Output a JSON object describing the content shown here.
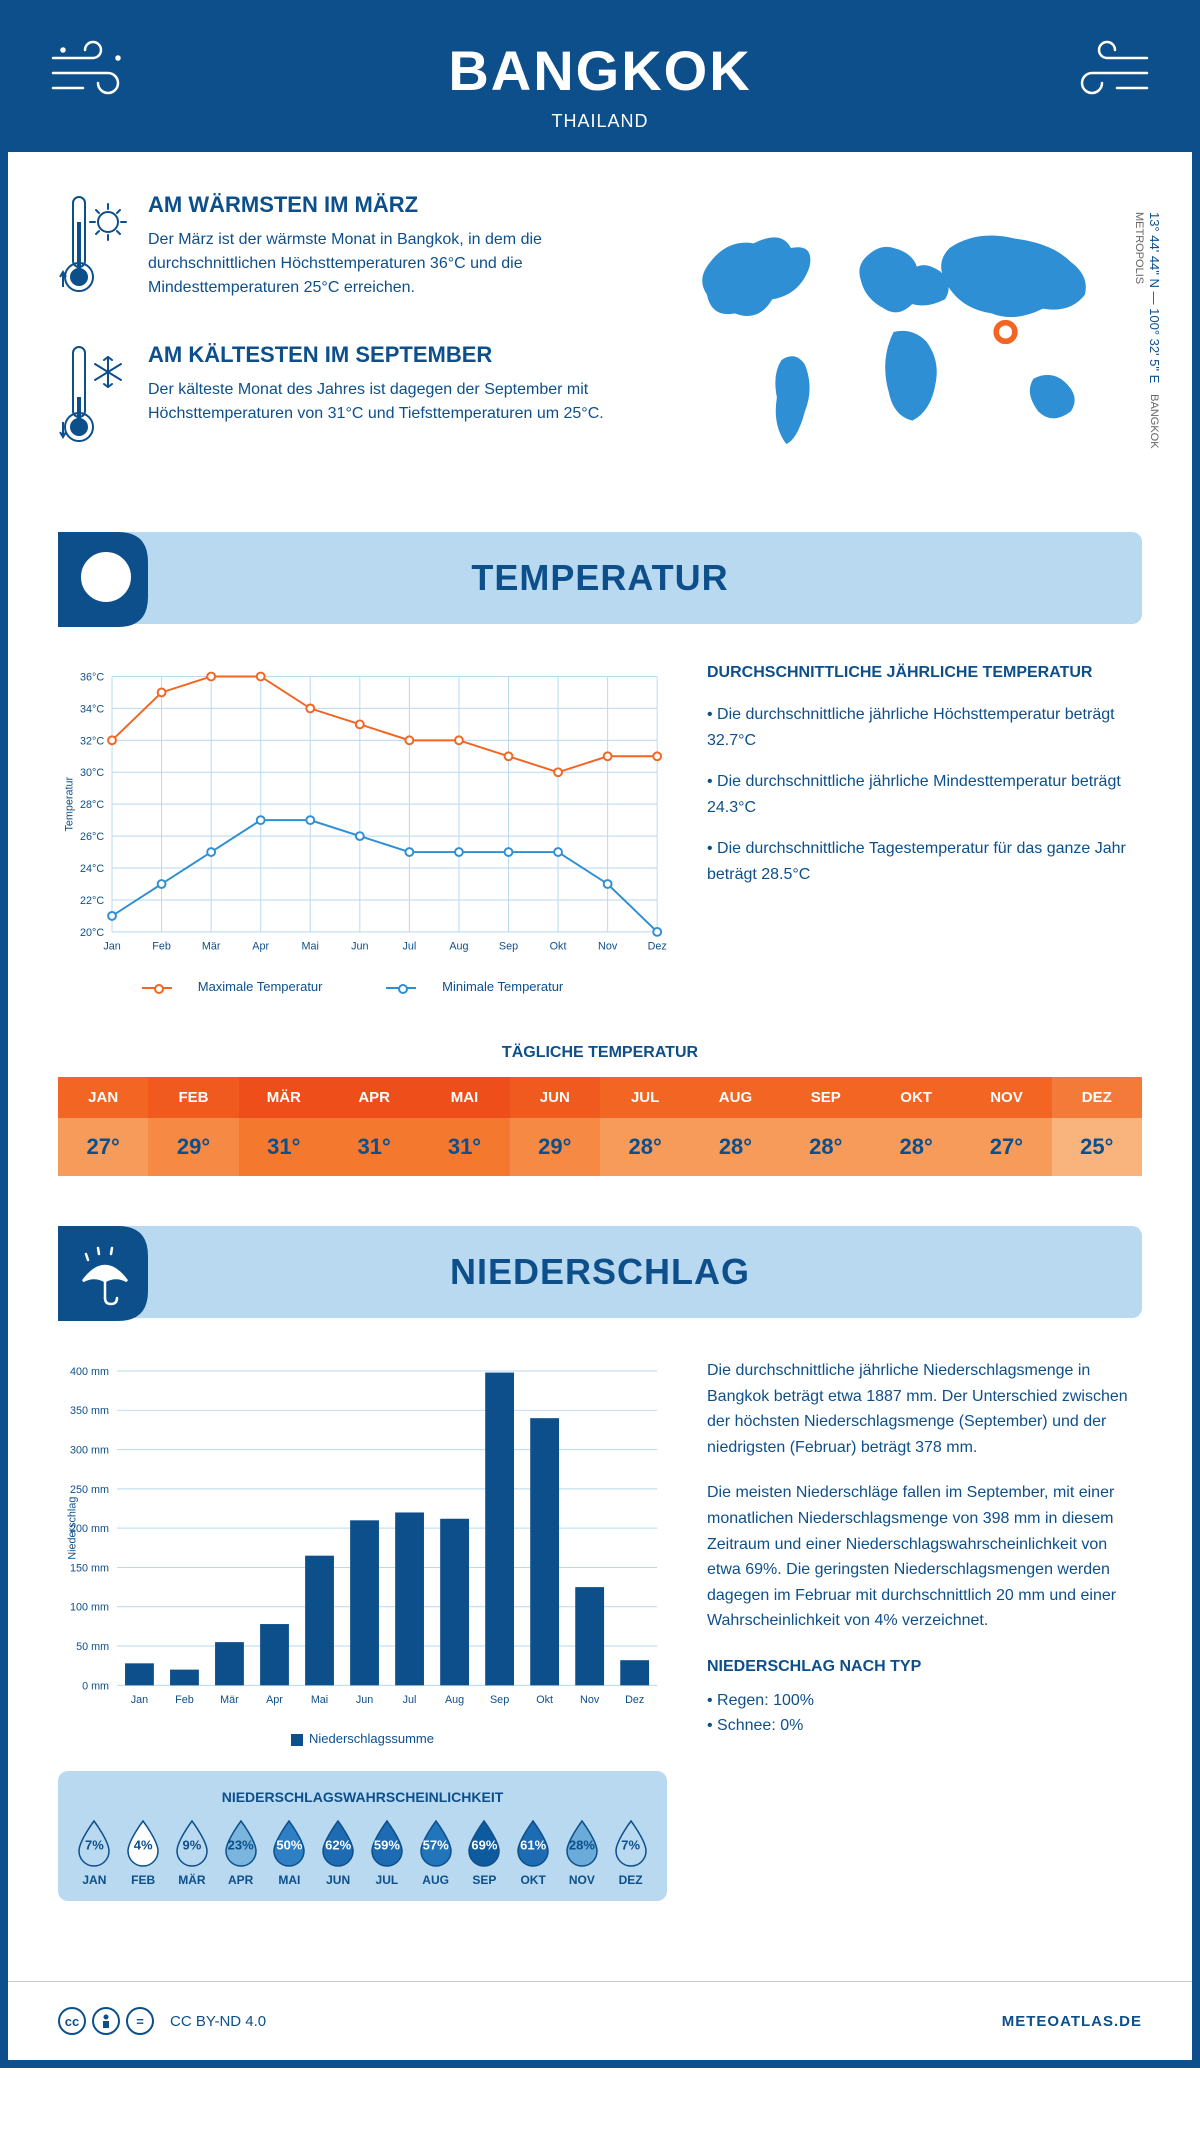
{
  "header": {
    "city": "BANGKOK",
    "country": "THAILAND"
  },
  "coords": {
    "text": "13° 44' 44\" N — 100° 32' 5\" E",
    "location": "BANGKOK METROPOLIS"
  },
  "intro": {
    "warmest": {
      "title": "AM WÄRMSTEN IM MÄRZ",
      "text": "Der März ist der wärmste Monat in Bangkok, in dem die durchschnittlichen Höchsttemperaturen 36°C und die Mindesttemperaturen 25°C erreichen."
    },
    "coldest": {
      "title": "AM KÄLTESTEN IM SEPTEMBER",
      "text": "Der kälteste Monat des Jahres ist dagegen der September mit Höchsttemperaturen von 31°C und Tiefsttemperaturen um 25°C."
    }
  },
  "temperature": {
    "section_title": "TEMPERATUR",
    "chart": {
      "type": "line",
      "months": [
        "Jan",
        "Feb",
        "Mär",
        "Apr",
        "Mai",
        "Jun",
        "Jul",
        "Aug",
        "Sep",
        "Okt",
        "Nov",
        "Dez"
      ],
      "max_values": [
        32,
        35,
        36,
        36,
        34,
        33,
        32,
        32,
        31,
        30,
        31,
        31
      ],
      "min_values": [
        21,
        23,
        25,
        27,
        27,
        26,
        25,
        25,
        25,
        25,
        23,
        20
      ],
      "ylim": [
        20,
        36
      ],
      "ytick_step": 2,
      "ylabel": "Temperatur",
      "max_color": "#f26522",
      "min_color": "#2e8fd4",
      "grid_color": "#b8d9ef",
      "background_color": "#ffffff",
      "legend_max": "Maximale Temperatur",
      "legend_min": "Minimale Temperatur"
    },
    "info": {
      "title": "DURCHSCHNITTLICHE JÄHRLICHE TEMPERATUR",
      "bullet1": "• Die durchschnittliche jährliche Höchsttemperatur beträgt 32.7°C",
      "bullet2": "• Die durchschnittliche jährliche Mindesttemperatur beträgt 24.3°C",
      "bullet3": "• Die durchschnittliche Tagestemperatur für das ganze Jahr beträgt 28.5°C"
    },
    "daily": {
      "title": "TÄGLICHE TEMPERATUR",
      "months": [
        "JAN",
        "FEB",
        "MÄR",
        "APR",
        "MAI",
        "JUN",
        "JUL",
        "AUG",
        "SEP",
        "OKT",
        "NOV",
        "DEZ"
      ],
      "values": [
        "27°",
        "29°",
        "31°",
        "31°",
        "31°",
        "29°",
        "28°",
        "28°",
        "28°",
        "28°",
        "27°",
        "25°"
      ],
      "month_colors": [
        "#f26522",
        "#f05a1e",
        "#ee4f1a",
        "#ee4f1a",
        "#ee4f1a",
        "#f05a1e",
        "#f26522",
        "#f26522",
        "#f26522",
        "#f26522",
        "#f26522",
        "#f47a3a"
      ],
      "val_colors": [
        "#f79b5a",
        "#f68944",
        "#f5782f",
        "#f5782f",
        "#f5782f",
        "#f68944",
        "#f79b5a",
        "#f79b5a",
        "#f79b5a",
        "#f79b5a",
        "#f79b5a",
        "#f9b47d"
      ]
    }
  },
  "precipitation": {
    "section_title": "NIEDERSCHLAG",
    "chart": {
      "type": "bar",
      "months": [
        "Jan",
        "Feb",
        "Mär",
        "Apr",
        "Mai",
        "Jun",
        "Jul",
        "Aug",
        "Sep",
        "Okt",
        "Nov",
        "Dez"
      ],
      "values": [
        28,
        20,
        55,
        78,
        165,
        210,
        220,
        212,
        398,
        340,
        125,
        32
      ],
      "ylim": [
        0,
        400
      ],
      "ytick_step": 50,
      "ylabel": "Niederschlag",
      "bar_color": "#0d4f8b",
      "grid_color": "#b8d9ef",
      "legend": "Niederschlagssumme"
    },
    "text": {
      "p1": "Die durchschnittliche jährliche Niederschlagsmenge in Bangkok beträgt etwa 1887 mm. Der Unterschied zwischen der höchsten Niederschlagsmenge (September) und der niedrigsten (Februar) beträgt 378 mm.",
      "p2": "Die meisten Niederschläge fallen im September, mit einer monatlichen Niederschlagsmenge von 398 mm in diesem Zeitraum und einer Niederschlagswahrscheinlichkeit von etwa 69%. Die geringsten Niederschlagsmengen werden dagegen im Februar mit durchschnittlich 20 mm und einer Wahrscheinlichkeit von 4% verzeichnet.",
      "type_title": "NIEDERSCHLAG NACH TYP",
      "type_rain": "• Regen: 100%",
      "type_snow": "• Schnee: 0%"
    },
    "probability": {
      "title": "NIEDERSCHLAGSWAHRSCHEINLICHKEIT",
      "months": [
        "JAN",
        "FEB",
        "MÄR",
        "APR",
        "MAI",
        "JUN",
        "JUL",
        "AUG",
        "SEP",
        "OKT",
        "NOV",
        "DEZ"
      ],
      "values": [
        "7%",
        "4%",
        "9%",
        "23%",
        "50%",
        "62%",
        "59%",
        "57%",
        "69%",
        "61%",
        "28%",
        "7%"
      ],
      "fill_colors": [
        "#b8d9ef",
        "#ffffff",
        "#b8d9ef",
        "#7ab5de",
        "#2e7fc4",
        "#1d6bb3",
        "#1d6bb3",
        "#2274bb",
        "#0d5b9e",
        "#1d6bb3",
        "#6aabd9",
        "#b8d9ef"
      ],
      "text_colors": [
        "#0d4f8b",
        "#0d4f8b",
        "#0d4f8b",
        "#0d4f8b",
        "#ffffff",
        "#ffffff",
        "#ffffff",
        "#ffffff",
        "#ffffff",
        "#ffffff",
        "#0d4f8b",
        "#0d4f8b"
      ]
    }
  },
  "footer": {
    "license": "CC BY-ND 4.0",
    "brand": "METEOATLAS.DE"
  }
}
